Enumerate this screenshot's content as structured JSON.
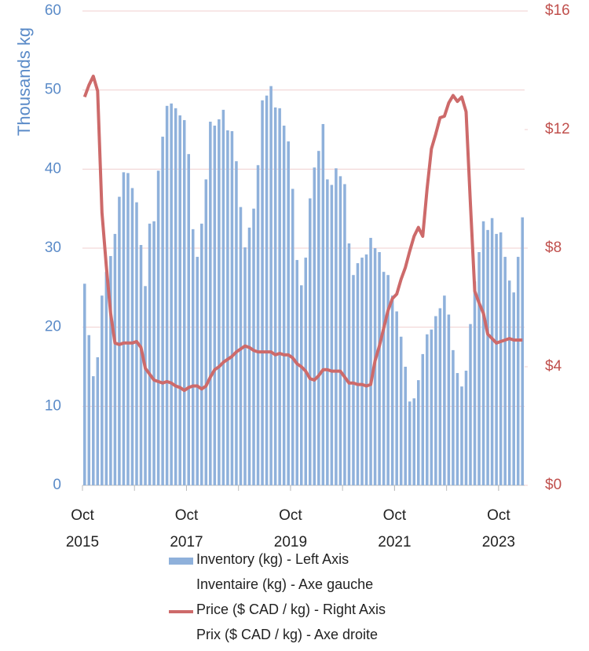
{
  "chart_data": {
    "type": "bar-line",
    "y_label": "Thousands kg",
    "categories": [
      "2015-10",
      "2015-11",
      "2015-12",
      "2016-01",
      "2016-02",
      "2016-03",
      "2016-04",
      "2016-05",
      "2016-06",
      "2016-07",
      "2016-08",
      "2016-09",
      "2016-10",
      "2016-11",
      "2016-12",
      "2017-01",
      "2017-02",
      "2017-03",
      "2017-04",
      "2017-05",
      "2017-06",
      "2017-07",
      "2017-08",
      "2017-09",
      "2017-10",
      "2017-11",
      "2017-12",
      "2018-01",
      "2018-02",
      "2018-03",
      "2018-04",
      "2018-05",
      "2018-06",
      "2018-07",
      "2018-08",
      "2018-09",
      "2018-10",
      "2018-11",
      "2018-12",
      "2019-01",
      "2019-02",
      "2019-03",
      "2019-04",
      "2019-05",
      "2019-06",
      "2019-07",
      "2019-08",
      "2019-09",
      "2019-10",
      "2019-11",
      "2019-12",
      "2020-01",
      "2020-02",
      "2020-03",
      "2020-04",
      "2020-05",
      "2020-06",
      "2020-07",
      "2020-08",
      "2020-09",
      "2020-10",
      "2020-11",
      "2020-12",
      "2021-01",
      "2021-02",
      "2021-03",
      "2021-04",
      "2021-05",
      "2021-06",
      "2021-07",
      "2021-08",
      "2021-09",
      "2021-10",
      "2021-11",
      "2021-12",
      "2022-01",
      "2022-02",
      "2022-03",
      "2022-04",
      "2022-05",
      "2022-06",
      "2022-07",
      "2022-08",
      "2022-09",
      "2022-10",
      "2022-11",
      "2022-12",
      "2023-01",
      "2023-02",
      "2023-03",
      "2023-04",
      "2023-05",
      "2023-06",
      "2023-07",
      "2023-08",
      "2023-09",
      "2023-10",
      "2023-11",
      "2023-12",
      "2024-01",
      "2024-02",
      "2024-03"
    ],
    "xticks": [
      {
        "value": "2015-10",
        "label": "Oct 2015"
      },
      {
        "value": "2017-10",
        "label": "Oct 2017"
      },
      {
        "value": "2019-10",
        "label": "Oct 2019"
      },
      {
        "value": "2021-10",
        "label": "Oct 2021"
      },
      {
        "value": "2023-10",
        "label": "Oct 2023"
      }
    ],
    "series": [
      {
        "name": "Inventory (kg) - Left Axis",
        "name_fr": "Inventaire (kg) - Axe gauche",
        "kind": "bar",
        "color": "#8fb1db",
        "axis": "y",
        "values": [
          25.5,
          19,
          13.8,
          16.2,
          24,
          27,
          29,
          31.8,
          36.5,
          39.6,
          39.5,
          37.6,
          35.8,
          30.4,
          25.2,
          33.1,
          33.4,
          39.8,
          44.1,
          48.0,
          48.3,
          47.7,
          46.8,
          46.2,
          41.9,
          32.4,
          28.9,
          33.1,
          38.7,
          46.0,
          45.5,
          46.3,
          47.5,
          44.9,
          44.8,
          41.0,
          35.2,
          30.1,
          32.6,
          35.0,
          40.5,
          48.7,
          49.3,
          50.5,
          47.8,
          47.7,
          45.5,
          43.5,
          37.5,
          28.5,
          25.3,
          28.8,
          36.3,
          40.2,
          42.3,
          45.7,
          38.7,
          38.0,
          40.1,
          39.1,
          38.1,
          30.6,
          26.6,
          28.1,
          28.8,
          29.2,
          31.3,
          30.0,
          29.5,
          27.0,
          26.6,
          24.0,
          22.0,
          18.8,
          15.0,
          10.6,
          11.0,
          13.3,
          16.6,
          19.1,
          19.7,
          21.4,
          22.4,
          24.0,
          21.6,
          17.1,
          14.2,
          12.5,
          14.5,
          20.4,
          25.8,
          29.5,
          33.4,
          32.3,
          33.8,
          31.8,
          32.0,
          28.9,
          25.9,
          24.4,
          28.9,
          33.9
        ]
      },
      {
        "name": "Price ($ CAD / kg) - Right Axis",
        "name_fr": "Prix ($ CAD / kg) - Axe droite",
        "kind": "line",
        "color": "#cd6a6a",
        "axis": "y2",
        "values": [
          13.1,
          13.5,
          13.8,
          13.3,
          9.2,
          7.4,
          5.8,
          4.8,
          4.75,
          4.8,
          4.8,
          4.8,
          4.85,
          4.65,
          3.95,
          3.75,
          3.55,
          3.5,
          3.45,
          3.5,
          3.45,
          3.35,
          3.3,
          3.2,
          3.3,
          3.35,
          3.35,
          3.25,
          3.35,
          3.65,
          3.9,
          4.0,
          4.15,
          4.25,
          4.35,
          4.5,
          4.6,
          4.7,
          4.65,
          4.55,
          4.5,
          4.5,
          4.5,
          4.5,
          4.4,
          4.45,
          4.4,
          4.4,
          4.3,
          4.1,
          4.0,
          3.85,
          3.6,
          3.55,
          3.7,
          3.9,
          3.9,
          3.85,
          3.85,
          3.85,
          3.65,
          3.45,
          3.45,
          3.4,
          3.4,
          3.35,
          3.4,
          4.2,
          4.7,
          5.3,
          5.9,
          6.3,
          6.45,
          6.95,
          7.35,
          7.9,
          8.4,
          8.7,
          8.4,
          10.0,
          11.35,
          11.85,
          12.4,
          12.45,
          12.9,
          13.15,
          12.95,
          13.1,
          12.6,
          9.5,
          6.55,
          6.15,
          5.8,
          5.1,
          4.95,
          4.8,
          4.85,
          4.9,
          4.95,
          4.9,
          4.9,
          4.9
        ]
      }
    ],
    "ylim": [
      0,
      60
    ],
    "yticks": [
      0,
      10,
      20,
      30,
      40,
      50,
      60
    ],
    "y2lim": [
      0,
      16
    ],
    "y2ticks": [
      {
        "value": 0,
        "label": "$0"
      },
      {
        "value": 4,
        "label": "$4"
      },
      {
        "value": 8,
        "label": "$8"
      },
      {
        "value": 12,
        "label": "$12"
      },
      {
        "value": 16,
        "label": "$16"
      }
    ],
    "grid": true,
    "y_color": "#5b8bc8",
    "y2_color": "#c0504d",
    "grid_color": "#f0cfcf"
  }
}
